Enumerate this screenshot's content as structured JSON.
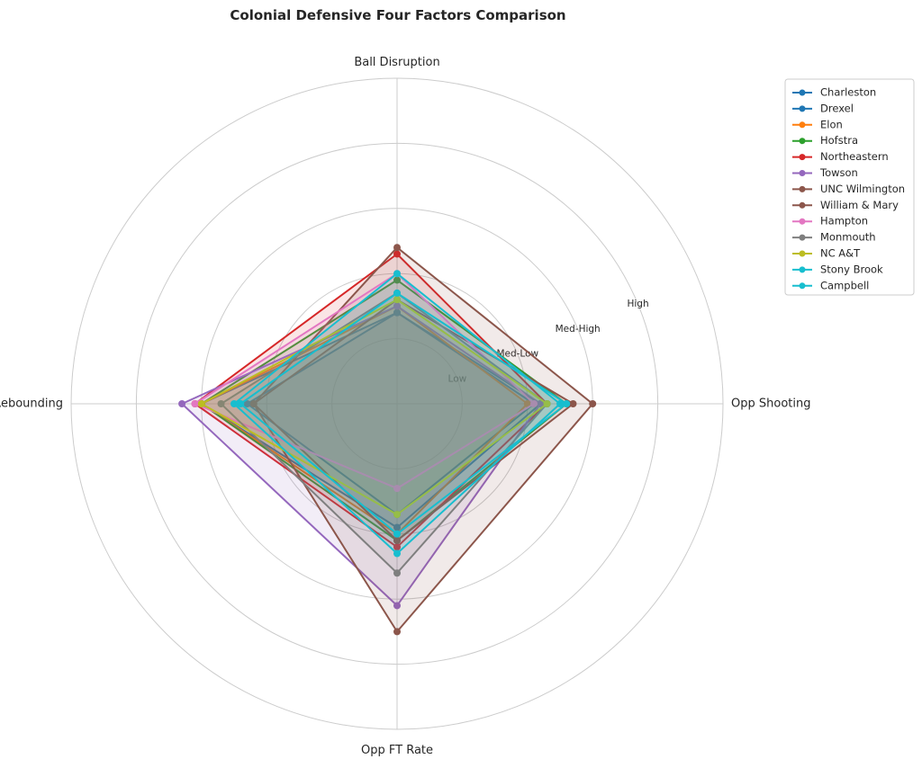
{
  "chart_data": {
    "type": "radar",
    "title": "Colonial Defensive Four Factors Comparison",
    "axes": [
      "Ball Disruption",
      "Opp Shooting",
      "Opp FT Rate",
      "Def Rebounding"
    ],
    "levels": [
      "Low",
      "Med-Low",
      "Med-High",
      "High"
    ],
    "rmax": 5,
    "grid": true,
    "legend": "top-right",
    "series": [
      {
        "name": "Charleston",
        "color": "#1f77b4",
        "values": [
          1.4,
          2.1,
          1.7,
          2.3
        ]
      },
      {
        "name": "Drexel",
        "color": "#1f77b4",
        "values": [
          1.4,
          2.2,
          1.9,
          3.0
        ]
      },
      {
        "name": "Elon",
        "color": "#ff7f0e",
        "values": [
          1.5,
          2.0,
          2.0,
          3.0
        ]
      },
      {
        "name": "Hofstra",
        "color": "#2ca02c",
        "values": [
          1.9,
          2.6,
          2.1,
          3.0
        ]
      },
      {
        "name": "Northeastern",
        "color": "#d62728",
        "values": [
          2.3,
          2.3,
          2.2,
          3.1
        ]
      },
      {
        "name": "Towson",
        "color": "#9467bd",
        "values": [
          1.5,
          2.2,
          3.1,
          3.3
        ]
      },
      {
        "name": "UNC Wilmington",
        "color": "#8c564b",
        "values": [
          1.6,
          2.7,
          2.1,
          2.2
        ]
      },
      {
        "name": "William & Mary",
        "color": "#8c564b",
        "values": [
          2.4,
          3.0,
          3.5,
          2.2
        ]
      },
      {
        "name": "Hampton",
        "color": "#e377c2",
        "values": [
          2.0,
          2.1,
          1.3,
          3.1
        ]
      },
      {
        "name": "Monmouth",
        "color": "#7f7f7f",
        "values": [
          1.7,
          2.3,
          2.6,
          2.7
        ]
      },
      {
        "name": "NC A&T",
        "color": "#bcbd22",
        "values": [
          1.6,
          2.3,
          1.7,
          3.0
        ]
      },
      {
        "name": "Stony Brook",
        "color": "#17becf",
        "values": [
          2.0,
          2.5,
          2.3,
          2.5
        ]
      },
      {
        "name": "Campbell",
        "color": "#17becf",
        "values": [
          1.7,
          2.6,
          2.0,
          2.4
        ]
      }
    ]
  }
}
